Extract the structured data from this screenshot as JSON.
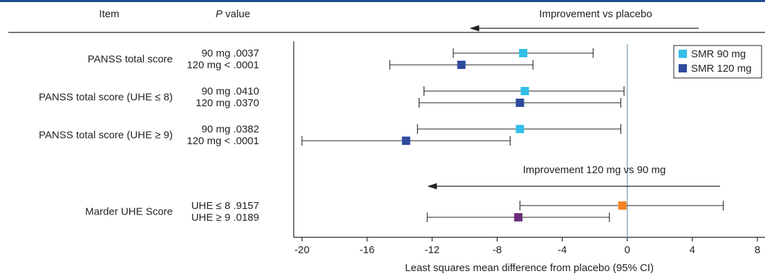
{
  "header": {
    "item_label": "Item",
    "p_label_italic": "P",
    "p_label_rest": " value"
  },
  "chart_data": {
    "type": "forest",
    "xlabel": "Least squares mean difference from placebo (95% CI)",
    "xlim": [
      -20,
      8
    ],
    "xticks": [
      -20,
      -16,
      -12,
      -8,
      -4,
      0,
      4,
      8
    ],
    "reference_line": 0,
    "legend_position": "top-right",
    "legend": [
      {
        "name": "SMR 90 mg",
        "color": "#33bfe8"
      },
      {
        "name": "SMR 120 mg",
        "color": "#2e4b9e"
      }
    ],
    "annotations": [
      {
        "text": "Improvement vs placebo",
        "arrow_from": 4.4,
        "arrow_to": -9.7
      },
      {
        "text": "Improvement 120 mg vs 90 mg",
        "arrow_from": 5.7,
        "arrow_to": -12.3
      }
    ],
    "groups": [
      {
        "label": "PANSS total score",
        "rows": [
          {
            "p_label": "90 mg  .0037",
            "estimate": -6.4,
            "ci": [
              -10.7,
              -2.1
            ],
            "color": "#33bfe8"
          },
          {
            "p_label": "120 mg  < .0001",
            "estimate": -10.2,
            "ci": [
              -14.6,
              -5.8
            ],
            "color": "#2e4b9e"
          }
        ]
      },
      {
        "label": "PANSS total score (UHE ≤ 8)",
        "rows": [
          {
            "p_label": "90 mg  .0410",
            "estimate": -6.3,
            "ci": [
              -12.5,
              -0.2
            ],
            "color": "#33bfe8"
          },
          {
            "p_label": "120 mg  .0370",
            "estimate": -6.6,
            "ci": [
              -12.8,
              -0.4
            ],
            "color": "#2e4b9e"
          }
        ]
      },
      {
        "label": "PANSS total score (UHE ≥ 9)",
        "rows": [
          {
            "p_label": "90 mg  .0382",
            "estimate": -6.6,
            "ci": [
              -12.9,
              -0.4
            ],
            "color": "#33bfe8"
          },
          {
            "p_label": "120 mg  < .0001",
            "estimate": -13.6,
            "ci": [
              -20.0,
              -7.2
            ],
            "color": "#2e4b9e"
          }
        ]
      },
      {
        "label": "Marder UHE Score",
        "rows": [
          {
            "p_label": "UHE ≤ 8  .9157",
            "estimate": -0.3,
            "ci": [
              -6.6,
              5.9
            ],
            "color": "#f58220"
          },
          {
            "p_label": "UHE ≥ 9  .0189",
            "estimate": -6.7,
            "ci": [
              -12.3,
              -1.1
            ],
            "color": "#6b2d7b"
          }
        ]
      }
    ]
  }
}
